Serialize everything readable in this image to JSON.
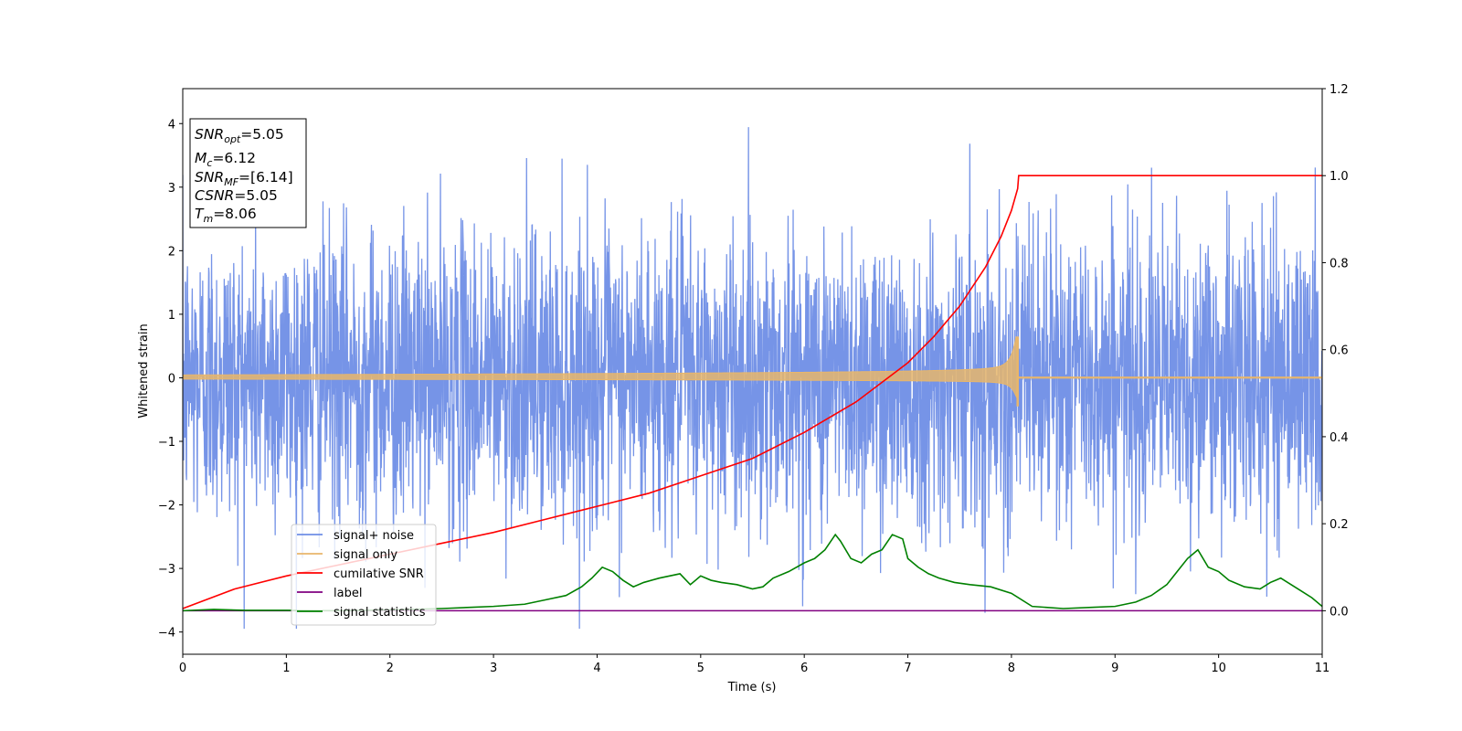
{
  "chart_data": {
    "type": "line",
    "xlabel": "Time (s)",
    "ylabel": "Whitened strain",
    "xlim": [
      0,
      11
    ],
    "ylim_left": [
      -4.35,
      4.55
    ],
    "ylim_right": [
      -0.1,
      1.2
    ],
    "xticks": [
      "0",
      "1",
      "2",
      "3",
      "4",
      "5",
      "6",
      "7",
      "8",
      "9",
      "10",
      "11"
    ],
    "yticks_left": [
      "−4",
      "−3",
      "−2",
      "−1",
      "0",
      "1",
      "2",
      "3",
      "4"
    ],
    "yticks_right": [
      "0.0",
      "0.2",
      "0.4",
      "0.6",
      "0.8",
      "1.0",
      "1.2"
    ],
    "legend_position": "lower-left",
    "infobox": {
      "snr_opt_label": "SNR",
      "snr_opt_sub": "opt",
      "snr_opt_value": "=5.05",
      "mc_label": "M",
      "mc_sub": "c",
      "mc_value": "=6.12",
      "snr_mf_label": "SNR",
      "snr_mf_sub": "MF",
      "snr_mf_value": "=[6.14]",
      "csnr_label": "CSNR",
      "csnr_value": "=5.05",
      "tm_label": "T",
      "tm_sub": "m",
      "tm_value": "=8.06"
    },
    "series": [
      {
        "name": "signal+ noise",
        "color": "#6f8ee6",
        "axis": "left",
        "kind": "white-noise",
        "std": 1.0,
        "merger_time": 8.06
      },
      {
        "name": "signal only",
        "color": "#e8b66b",
        "axis": "left",
        "kind": "chirp",
        "amplitude_at_merger": 0.65,
        "merger_time": 8.06
      },
      {
        "name": "cumilative SNR",
        "color": "#ff0000",
        "axis": "right",
        "x": [
          0,
          0.5,
          1,
          1.5,
          2,
          2.5,
          3,
          3.5,
          4,
          4.5,
          5,
          5.5,
          6,
          6.5,
          7,
          7.25,
          7.5,
          7.75,
          7.9,
          8.0,
          8.06,
          8.07,
          11
        ],
        "y": [
          0.005,
          0.05,
          0.08,
          0.105,
          0.13,
          0.155,
          0.18,
          0.21,
          0.24,
          0.27,
          0.31,
          0.35,
          0.41,
          0.48,
          0.57,
          0.63,
          0.7,
          0.79,
          0.86,
          0.92,
          0.97,
          1.0,
          1.0
        ]
      },
      {
        "name": "label",
        "color": "#800080",
        "axis": "right",
        "x": [
          0,
          11
        ],
        "y": [
          0,
          0
        ]
      },
      {
        "name": "signal statistics",
        "color": "#008000",
        "axis": "right",
        "x": [
          0,
          0.3,
          0.6,
          1,
          1.5,
          2,
          2.5,
          2.8,
          3,
          3.3,
          3.5,
          3.7,
          3.85,
          3.95,
          4.05,
          4.15,
          4.25,
          4.35,
          4.45,
          4.6,
          4.8,
          4.9,
          5.0,
          5.1,
          5.2,
          5.35,
          5.5,
          5.6,
          5.7,
          5.85,
          6.0,
          6.1,
          6.2,
          6.3,
          6.35,
          6.45,
          6.55,
          6.65,
          6.75,
          6.85,
          6.95,
          7.0,
          7.1,
          7.2,
          7.3,
          7.45,
          7.6,
          7.8,
          8.0,
          8.2,
          8.5,
          8.8,
          9.0,
          9.2,
          9.35,
          9.5,
          9.6,
          9.7,
          9.8,
          9.9,
          10.0,
          10.1,
          10.25,
          10.4,
          10.5,
          10.6,
          10.7,
          10.8,
          10.9,
          11.0
        ],
        "y": [
          0.0,
          0.003,
          0.001,
          0.001,
          0.0,
          0.002,
          0.005,
          0.008,
          0.01,
          0.015,
          0.025,
          0.035,
          0.055,
          0.075,
          0.1,
          0.09,
          0.07,
          0.055,
          0.065,
          0.075,
          0.085,
          0.06,
          0.08,
          0.07,
          0.065,
          0.06,
          0.05,
          0.055,
          0.075,
          0.09,
          0.11,
          0.12,
          0.14,
          0.175,
          0.16,
          0.12,
          0.11,
          0.13,
          0.14,
          0.175,
          0.165,
          0.12,
          0.1,
          0.085,
          0.075,
          0.065,
          0.06,
          0.055,
          0.04,
          0.01,
          0.005,
          0.008,
          0.01,
          0.02,
          0.035,
          0.06,
          0.09,
          0.12,
          0.14,
          0.1,
          0.09,
          0.07,
          0.055,
          0.05,
          0.065,
          0.075,
          0.06,
          0.045,
          0.03,
          0.01
        ]
      }
    ]
  }
}
